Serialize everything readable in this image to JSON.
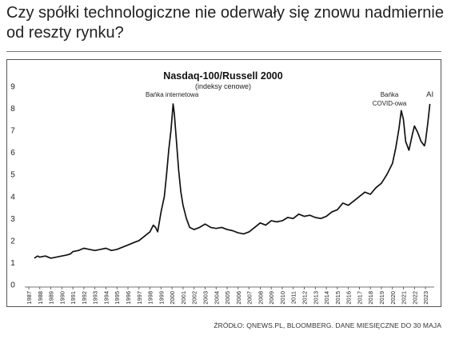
{
  "headline": "Czy spółki technologiczne nie oderwały się znowu nadmiernie od reszty rynku?",
  "source": "ŹRÓDŁO: QNEWS.PL, BLOOMBERG. DANE MIESIĘCZNE DO 30 MAJA",
  "colors": {
    "line": "#111111",
    "frame": "#555555",
    "text": "#222222"
  },
  "chart_data": {
    "type": "line",
    "title": "Nasdaq-100/Russell 2000",
    "subtitle": "(indeksy cenowe)",
    "xlabel": "",
    "ylabel": "",
    "xlim": [
      1987,
      2023.5
    ],
    "ylim": [
      0,
      9
    ],
    "grid": false,
    "legend": "none",
    "y_ticks": [
      "0",
      "1",
      "2",
      "3",
      "4",
      "5",
      "6",
      "7",
      "8",
      "9"
    ],
    "x_ticks": [
      "1987",
      "1988",
      "1989",
      "1990",
      "1991",
      "1992",
      "1993",
      "1994",
      "1995",
      "1996",
      "1997",
      "1998",
      "1999",
      "2000",
      "2001",
      "2002",
      "2003",
      "2004",
      "2005",
      "2006",
      "2007",
      "2008",
      "2009",
      "2010",
      "2011",
      "2012",
      "2013",
      "2014",
      "2015",
      "2016",
      "2017",
      "2018",
      "2019",
      "2020",
      "2021",
      "2022",
      "2023"
    ],
    "annotations": [
      {
        "text": "Bańka internetowa",
        "x": 2000.0,
        "y": 8.1
      },
      {
        "text": "Bańka",
        "x": 2020.6,
        "y": 7.7
      },
      {
        "text": "COVID-owa",
        "x": 2020.6,
        "y": 7.7
      },
      {
        "text": "AI",
        "x": 2023.4,
        "y": 8.1
      }
    ],
    "series": [
      {
        "x": [
          1987.5,
          1987.8,
          1988.0,
          1988.5,
          1989.0,
          1989.5,
          1990.0,
          1990.5,
          1990.8,
          1991.0,
          1991.5,
          1992.0,
          1992.5,
          1993.0,
          1993.5,
          1994.0,
          1994.5,
          1995.0,
          1995.5,
          1996.0,
          1996.5,
          1997.0,
          1997.5,
          1998.0,
          1998.3,
          1998.5,
          1998.7,
          1999.0,
          1999.3,
          1999.5,
          1999.7,
          1999.9,
          2000.1,
          2000.2,
          2000.4,
          2000.6,
          2000.8,
          2001.0,
          2001.3,
          2001.6,
          2002.0,
          2002.5,
          2003.0,
          2003.5,
          2004.0,
          2004.5,
          2005.0,
          2005.5,
          2006.0,
          2006.5,
          2007.0,
          2007.5,
          2008.0,
          2008.5,
          2009.0,
          2009.5,
          2010.0,
          2010.5,
          2011.0,
          2011.5,
          2012.0,
          2012.5,
          2013.0,
          2013.5,
          2014.0,
          2014.5,
          2015.0,
          2015.5,
          2016.0,
          2016.5,
          2017.0,
          2017.5,
          2018.0,
          2018.5,
          2019.0,
          2019.5,
          2020.0,
          2020.3,
          2020.6,
          2020.8,
          2021.0,
          2021.2,
          2021.5,
          2021.8,
          2022.0,
          2022.3,
          2022.6,
          2022.9,
          2023.0,
          2023.2,
          2023.4
        ],
        "values": [
          1.2,
          1.3,
          1.25,
          1.3,
          1.2,
          1.25,
          1.3,
          1.35,
          1.4,
          1.5,
          1.55,
          1.65,
          1.6,
          1.55,
          1.6,
          1.65,
          1.55,
          1.6,
          1.7,
          1.8,
          1.9,
          2.0,
          2.2,
          2.4,
          2.7,
          2.6,
          2.4,
          3.3,
          4.0,
          5.0,
          6.1,
          7.0,
          8.2,
          7.8,
          6.5,
          5.2,
          4.2,
          3.6,
          3.0,
          2.6,
          2.5,
          2.6,
          2.75,
          2.6,
          2.55,
          2.6,
          2.5,
          2.45,
          2.35,
          2.3,
          2.4,
          2.6,
          2.8,
          2.7,
          2.9,
          2.85,
          2.9,
          3.05,
          3.0,
          3.2,
          3.1,
          3.15,
          3.05,
          3.0,
          3.1,
          3.3,
          3.4,
          3.7,
          3.6,
          3.8,
          4.0,
          4.2,
          4.1,
          4.4,
          4.6,
          5.0,
          5.5,
          6.2,
          7.1,
          7.9,
          7.5,
          6.5,
          6.1,
          6.8,
          7.2,
          6.9,
          6.5,
          6.3,
          6.5,
          7.3,
          8.2
        ]
      }
    ]
  }
}
